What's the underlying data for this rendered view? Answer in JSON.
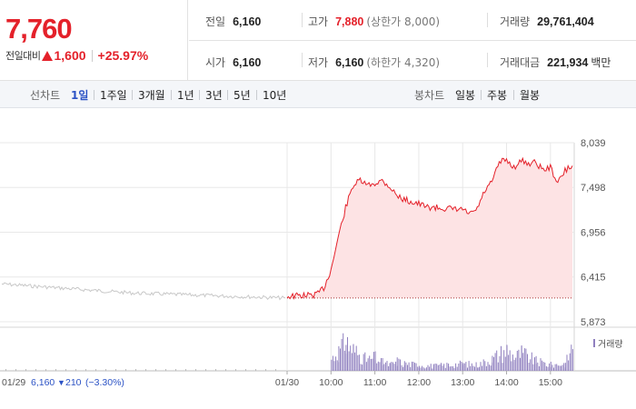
{
  "summary": {
    "current_price": "7,760",
    "change_label": "전일대비",
    "change_amount": "1,600",
    "change_percent": "+25.97%",
    "prev_close_label": "전일",
    "prev_close": "6,160",
    "open_label": "시가",
    "open": "6,160",
    "high_label": "고가",
    "high": "7,880",
    "upper_limit": "(상한가 8,000)",
    "low_label": "저가",
    "low": "6,160",
    "lower_limit": "(하한가 4,320)",
    "volume_label": "거래량",
    "volume": "29,761,404",
    "trade_value_label": "거래대금",
    "trade_value": "221,934",
    "trade_value_unit": "백만"
  },
  "tabs": {
    "line_chart_label": "선차트",
    "line_periods": [
      "1일",
      "1주일",
      "3개월",
      "1년",
      "3년",
      "5년",
      "10년"
    ],
    "active_period": "1일",
    "candle_chart_label": "봉차트",
    "candle_periods": [
      "일봉",
      "주봉",
      "월봉"
    ]
  },
  "chart": {
    "prev_day_date": "01/29",
    "prev_day_price": "6,160",
    "prev_day_change": "210",
    "prev_day_pct": "(−3.30%)",
    "today_date": "01/30",
    "volume_legend": "거래량",
    "colors": {
      "up": "#e4212a",
      "fill": "#fde3e4",
      "prev": "#c8c8c8",
      "volume": "#8f7fbf",
      "grid": "#e8e8e8"
    }
  },
  "chart_data": {
    "type": "line",
    "y_ticks": [
      "8,039",
      "7,498",
      "6,956",
      "6,415",
      "5,873"
    ],
    "ylim": [
      5873,
      8039
    ],
    "x_ticks": [
      "01/29",
      "01/30",
      "10:00",
      "11:00",
      "12:00",
      "13:00",
      "14:00",
      "15:00"
    ],
    "baseline": 6160,
    "series": [
      {
        "x": [
          "01/29",
          "01/29 12:00",
          "01/29 15:30",
          "01/30 09:00",
          "01/30 09:40",
          "01/30 09:50",
          "01/30 10:00",
          "01/30 10:10",
          "01/30 10:20",
          "01/30 10:30",
          "01/30 10:40",
          "01/30 10:50",
          "01/30 11:00",
          "01/30 11:10",
          "01/30 11:20",
          "01/30 11:30",
          "01/30 11:40",
          "01/30 12:00",
          "01/30 12:10",
          "01/30 12:30",
          "01/30 12:50",
          "01/30 13:00",
          "01/30 13:10",
          "01/30 13:20",
          "01/30 13:30",
          "01/30 13:40",
          "01/30 13:50",
          "01/30 14:00",
          "01/30 14:10",
          "01/30 14:20",
          "01/30 14:30",
          "01/30 14:40",
          "01/30 14:50",
          "01/30 15:00",
          "01/30 15:10",
          "01/30 15:20",
          "01/30 15:30"
        ],
        "values": [
          6330,
          6220,
          6160,
          6180,
          6200,
          6280,
          6500,
          6900,
          7250,
          7520,
          7580,
          7520,
          7550,
          7580,
          7510,
          7400,
          7350,
          7300,
          7260,
          7250,
          7230,
          7230,
          7170,
          7240,
          7450,
          7560,
          7800,
          7830,
          7740,
          7820,
          7790,
          7800,
          7710,
          7740,
          7550,
          7700,
          7760
        ]
      }
    ],
    "volume": {
      "x": [
        "10:00",
        "10:10",
        "10:20",
        "10:30",
        "10:40",
        "10:50",
        "11:00",
        "11:10",
        "11:20",
        "11:30",
        "11:40",
        "12:00",
        "12:20",
        "12:40",
        "13:00",
        "13:20",
        "13:40",
        "14:00",
        "14:10",
        "14:20",
        "14:40",
        "15:00",
        "15:20",
        "15:30"
      ],
      "values": [
        1.0,
        1.6,
        2.4,
        1.8,
        1.2,
        0.9,
        1.1,
        0.7,
        0.5,
        0.8,
        0.6,
        0.5,
        0.4,
        0.5,
        0.6,
        0.5,
        1.0,
        1.8,
        1.1,
        1.5,
        0.8,
        0.5,
        0.6,
        2.2
      ]
    }
  }
}
